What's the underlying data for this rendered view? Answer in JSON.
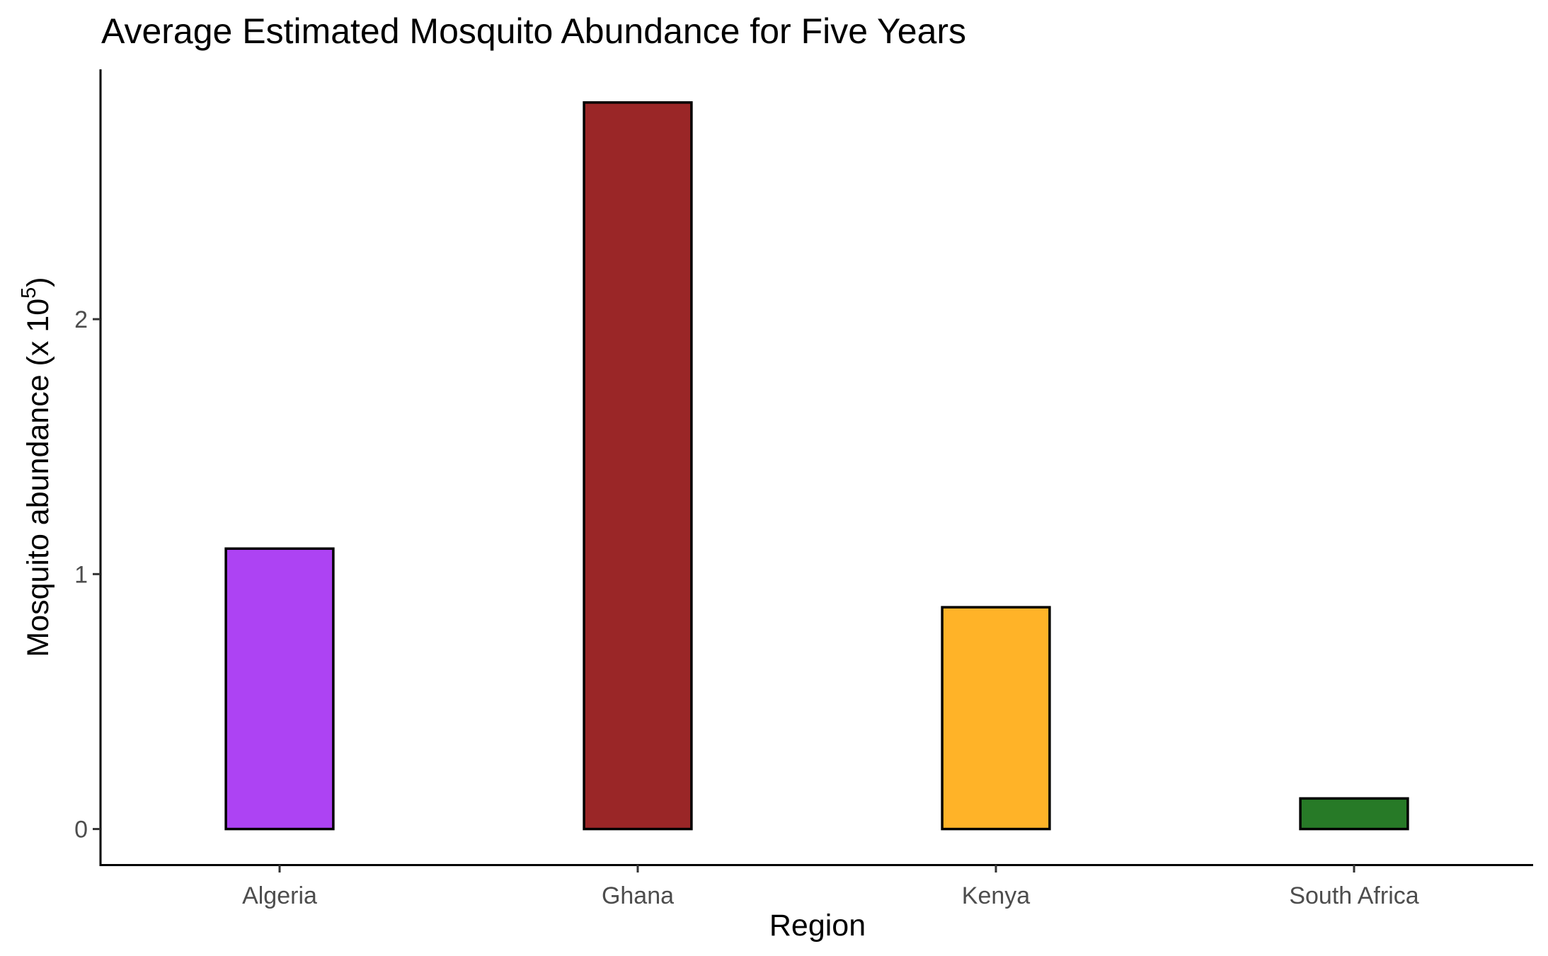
{
  "chart_data": {
    "type": "bar",
    "title": "Average Estimated Mosquito Abundance for Five Years",
    "xlabel": "Region",
    "ylabel_main": "Mosquito abundance (x 10",
    "ylabel_sup": "5",
    "ylabel_close": ")",
    "categories": [
      "Algeria",
      "Ghana",
      "Kenya",
      "South Africa"
    ],
    "values": [
      1.1,
      2.85,
      0.87,
      0.12
    ],
    "colors": [
      "#AD43F3",
      "#9A2627",
      "#FFB328",
      "#277A27"
    ],
    "yticks": [
      "0",
      "1",
      "2"
    ],
    "ytick_values": [
      0,
      1,
      2
    ],
    "ylim": [
      -0.14,
      2.98
    ],
    "grid": false,
    "legend": "none"
  }
}
